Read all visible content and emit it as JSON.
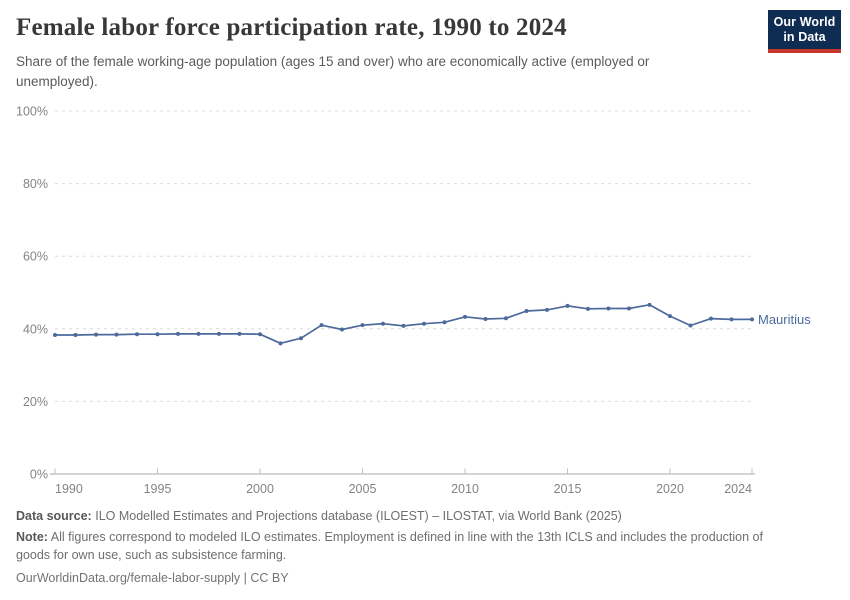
{
  "header": {
    "title": "Female labor force participation rate, 1990 to 2024",
    "subtitle": "Share of the female working-age population (ages 15 and over) who are economically active (employed or unemployed)."
  },
  "logo": {
    "line1": "Our World",
    "line2": "in Data",
    "bg_color": "#0f2d52",
    "stripe_color": "#c8352d"
  },
  "chart_data": {
    "type": "line",
    "title": "Female labor force participation rate, 1990 to 2024",
    "xlabel": "",
    "ylabel": "",
    "xlim": [
      1990,
      2024
    ],
    "ylim": [
      0,
      100
    ],
    "x_ticks": [
      1990,
      1995,
      2000,
      2005,
      2010,
      2015,
      2020,
      2024
    ],
    "y_ticks": [
      0,
      20,
      40,
      60,
      80,
      100
    ],
    "y_tick_suffix": "%",
    "grid": "horizontal dashed",
    "legend_position": "end-of-line label",
    "x": [
      1990,
      1991,
      1992,
      1993,
      1994,
      1995,
      1996,
      1997,
      1998,
      1999,
      2000,
      2001,
      2002,
      2003,
      2004,
      2005,
      2006,
      2007,
      2008,
      2009,
      2010,
      2011,
      2012,
      2013,
      2014,
      2015,
      2016,
      2017,
      2018,
      2019,
      2020,
      2021,
      2022,
      2023,
      2024
    ],
    "series": [
      {
        "name": "Mauritius",
        "color": "#4c6a9c",
        "values": [
          38.3,
          38.3,
          38.4,
          38.4,
          38.5,
          38.5,
          38.6,
          38.6,
          38.6,
          38.6,
          38.5,
          36.0,
          37.4,
          41.0,
          39.8,
          41.0,
          41.4,
          40.8,
          41.4,
          41.8,
          43.3,
          42.7,
          42.9,
          44.9,
          45.2,
          46.3,
          45.5,
          45.6,
          45.6,
          46.6,
          43.5,
          40.9,
          42.8,
          42.6,
          42.6
        ]
      }
    ]
  },
  "colors": {
    "line": "#4c6a9c",
    "tick_label": "#848484",
    "grid": "#dcdcdc",
    "axis": "#a8a8a8",
    "axis_tick": "#c2c2c2"
  },
  "footer": {
    "data_source_label": "Data source:",
    "data_source_text": "ILO Modelled Estimates and Projections database (ILOEST) – ILOSTAT, via World Bank (2025)",
    "note_label": "Note:",
    "note_text": "All figures correspond to modeled ILO estimates. Employment is defined in line with the 13th ICLS and includes the production of goods for own use, such as subsistence farming.",
    "citation": "OurWorldinData.org/female-labor-supply | CC BY"
  }
}
